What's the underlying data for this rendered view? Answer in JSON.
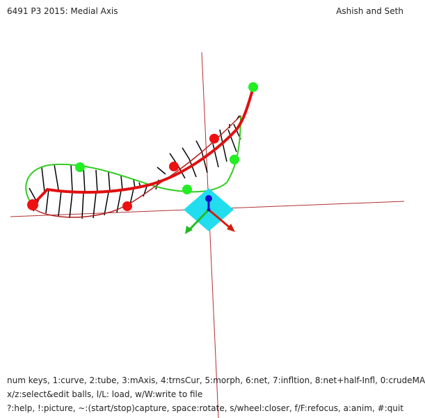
{
  "header": {
    "title": "6491 P3 2015: Medial Axis",
    "authors": "Ashish and Seth"
  },
  "help": {
    "line1": "num keys, 1:curve, 2:tube, 3:mAxis, 4:trnsCur, 5:morph, 6:net, 7:infltion, 8:net+half-Infl, 0:crudeMA",
    "line2": "x/z:select&edit balls, l/L: load, w/W:write to file",
    "line3": "?:help, !:picture, ~:(start/stop)capture, space:rotate, s/wheel:closer, f/F:refocus, a:anim, #:quit"
  },
  "colors": {
    "background": "#ffffff",
    "axis": "#b03030",
    "medial_axis": "#e01010",
    "curve_top": "#33cc22",
    "curve_bottom": "#b02020",
    "control_green": "#22ee22",
    "control_red": "#ee1111",
    "net": "#000000",
    "focus_diamond": "#22ddee",
    "arrow_x": "#d02010",
    "arrow_y": "#22bb22",
    "arrow_z": "#1010cc"
  },
  "icons": {
    "focus": "diamond-focus-icon",
    "axes_gizmo": "xyz-arrows-icon"
  }
}
